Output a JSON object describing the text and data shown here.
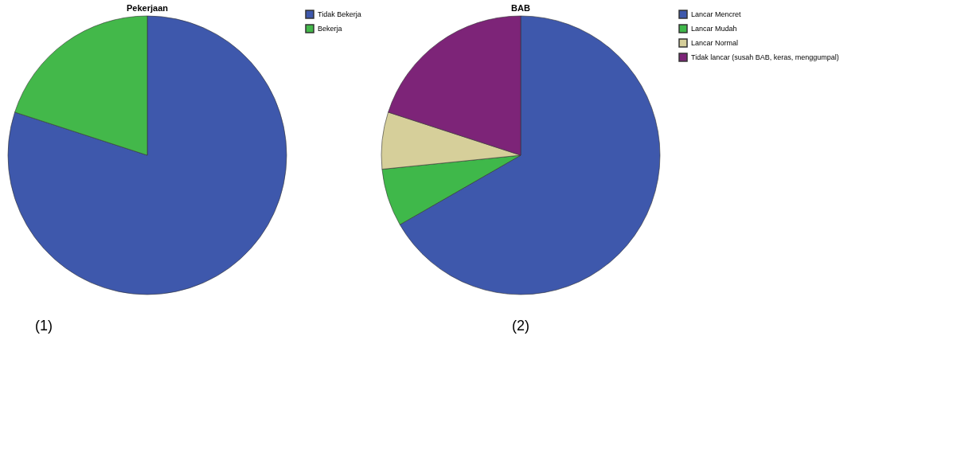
{
  "chart_data": [
    {
      "type": "pie",
      "title": "Pekerjaan",
      "categories": [
        "Tidak Bekerja",
        "Bekerja"
      ],
      "values": [
        80,
        20
      ],
      "colors": [
        "#3e58ac",
        "#43b84a"
      ],
      "legend": "top right",
      "annotations": [
        "(1)"
      ]
    },
    {
      "type": "pie",
      "title": "BAB",
      "categories": [
        "Lancar Mencret",
        "Lancar Mudah",
        "Lancar Normal",
        "Tidak lancar (susah BAB, keras, menggumpal)"
      ],
      "values": [
        66.7,
        6.7,
        6.6,
        20
      ],
      "colors": [
        "#3e58ac",
        "#3fb84a",
        "#d6cf9a",
        "#7d2478"
      ],
      "legend": "top right",
      "annotations": [
        "(2)"
      ]
    }
  ]
}
